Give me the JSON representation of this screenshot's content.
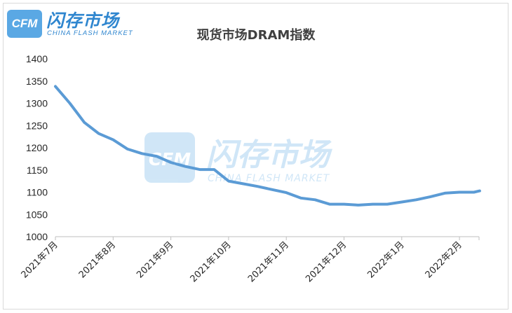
{
  "logo": {
    "mark": "CFM",
    "name": "闪存市场",
    "subtitle": "CHINA FLASH MARKET"
  },
  "watermark": {
    "mark": "CFM",
    "name": "闪存市场",
    "subtitle": "CHINA FLASH MARKET"
  },
  "colors": {
    "line": "#5b9bd5",
    "axis": "#bfbfbf",
    "brand": "#2f86cf"
  },
  "chart_data": {
    "type": "line",
    "title": "现货市场DRAM指数",
    "xlabel": "",
    "ylabel": "",
    "ylim": [
      1000,
      1400
    ],
    "yticks": [
      1000,
      1050,
      1100,
      1150,
      1200,
      1250,
      1300,
      1350,
      1400
    ],
    "grid": false,
    "legend": "none",
    "categories": [
      "2021年7月",
      "2021年8月",
      "2021年9月",
      "2021年10月",
      "2021年11月",
      "2021年12月",
      "2022年1月",
      "2022年2月"
    ],
    "series": [
      {
        "name": "",
        "x": [
          0,
          0.25,
          0.5,
          0.75,
          1.0,
          1.25,
          1.5,
          1.75,
          2.0,
          2.25,
          2.5,
          2.75,
          3.0,
          3.25,
          3.5,
          3.75,
          4.0,
          4.25,
          4.5,
          4.75,
          5.0,
          5.25,
          5.5,
          5.75,
          6.0,
          6.25,
          6.5,
          6.75,
          7.0,
          7.25,
          7.35
        ],
        "values": [
          1338,
          1300,
          1257,
          1232,
          1218,
          1197,
          1187,
          1181,
          1167,
          1158,
          1151,
          1151,
          1125,
          1119,
          1113,
          1106,
          1099,
          1087,
          1083,
          1073,
          1073,
          1071,
          1073,
          1073,
          1078,
          1083,
          1090,
          1098,
          1100,
          1100,
          1103
        ]
      }
    ]
  }
}
